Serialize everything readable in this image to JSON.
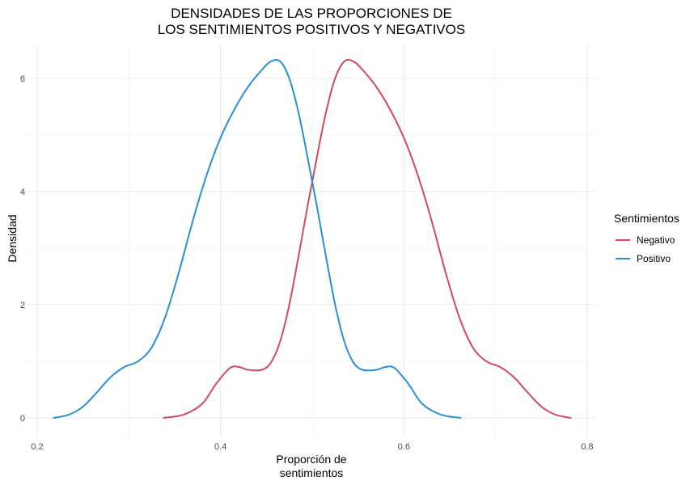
{
  "chart_data": {
    "type": "line",
    "title_line1": "DENSIDADES DE LAS PROPORCIONES DE",
    "title_line2": "LOS SENTIMIENTOS POSITIVOS Y NEGATIVOS",
    "xlabel_line1": "Proporción de",
    "xlabel_line2": "sentimientos",
    "ylabel": "Densidad",
    "xlim": [
      0.2,
      0.8
    ],
    "ylim": [
      0,
      6.3
    ],
    "x_ticks": [
      0.2,
      0.4,
      0.6,
      0.8
    ],
    "x_tick_labels": [
      "0.2",
      "0.4",
      "0.6",
      "0.8"
    ],
    "y_ticks": [
      0,
      2,
      4,
      6
    ],
    "y_tick_labels": [
      "0",
      "2",
      "4",
      "6"
    ],
    "grid": true,
    "legend": {
      "title": "Sentimientos",
      "position": "right"
    },
    "series": [
      {
        "name": "Negativo",
        "color": "#d14a61",
        "points": [
          [
            0.338,
            0.0
          ],
          [
            0.36,
            0.06
          ],
          [
            0.38,
            0.25
          ],
          [
            0.395,
            0.6
          ],
          [
            0.41,
            0.88
          ],
          [
            0.42,
            0.9
          ],
          [
            0.43,
            0.85
          ],
          [
            0.445,
            0.85
          ],
          [
            0.455,
            0.98
          ],
          [
            0.465,
            1.35
          ],
          [
            0.475,
            2.0
          ],
          [
            0.485,
            2.85
          ],
          [
            0.495,
            3.75
          ],
          [
            0.505,
            4.6
          ],
          [
            0.515,
            5.4
          ],
          [
            0.525,
            6.0
          ],
          [
            0.535,
            6.3
          ],
          [
            0.545,
            6.3
          ],
          [
            0.555,
            6.15
          ],
          [
            0.57,
            5.85
          ],
          [
            0.585,
            5.45
          ],
          [
            0.6,
            4.95
          ],
          [
            0.615,
            4.3
          ],
          [
            0.63,
            3.5
          ],
          [
            0.645,
            2.6
          ],
          [
            0.66,
            1.8
          ],
          [
            0.675,
            1.25
          ],
          [
            0.69,
            1.0
          ],
          [
            0.705,
            0.9
          ],
          [
            0.72,
            0.72
          ],
          [
            0.735,
            0.45
          ],
          [
            0.75,
            0.2
          ],
          [
            0.765,
            0.06
          ],
          [
            0.782,
            0.0
          ]
        ]
      },
      {
        "name": "Positivo",
        "color": "#2c8fd6",
        "points": [
          [
            0.218,
            0.0
          ],
          [
            0.235,
            0.06
          ],
          [
            0.25,
            0.2
          ],
          [
            0.265,
            0.45
          ],
          [
            0.28,
            0.72
          ],
          [
            0.295,
            0.9
          ],
          [
            0.31,
            1.0
          ],
          [
            0.325,
            1.25
          ],
          [
            0.34,
            1.8
          ],
          [
            0.355,
            2.6
          ],
          [
            0.37,
            3.5
          ],
          [
            0.385,
            4.3
          ],
          [
            0.4,
            4.95
          ],
          [
            0.415,
            5.45
          ],
          [
            0.43,
            5.85
          ],
          [
            0.445,
            6.15
          ],
          [
            0.455,
            6.3
          ],
          [
            0.465,
            6.3
          ],
          [
            0.475,
            6.0
          ],
          [
            0.485,
            5.4
          ],
          [
            0.495,
            4.6
          ],
          [
            0.505,
            3.75
          ],
          [
            0.515,
            2.85
          ],
          [
            0.525,
            2.0
          ],
          [
            0.535,
            1.35
          ],
          [
            0.545,
            0.98
          ],
          [
            0.555,
            0.85
          ],
          [
            0.57,
            0.85
          ],
          [
            0.58,
            0.9
          ],
          [
            0.59,
            0.88
          ],
          [
            0.605,
            0.6
          ],
          [
            0.62,
            0.25
          ],
          [
            0.64,
            0.06
          ],
          [
            0.662,
            0.0
          ]
        ]
      }
    ]
  }
}
